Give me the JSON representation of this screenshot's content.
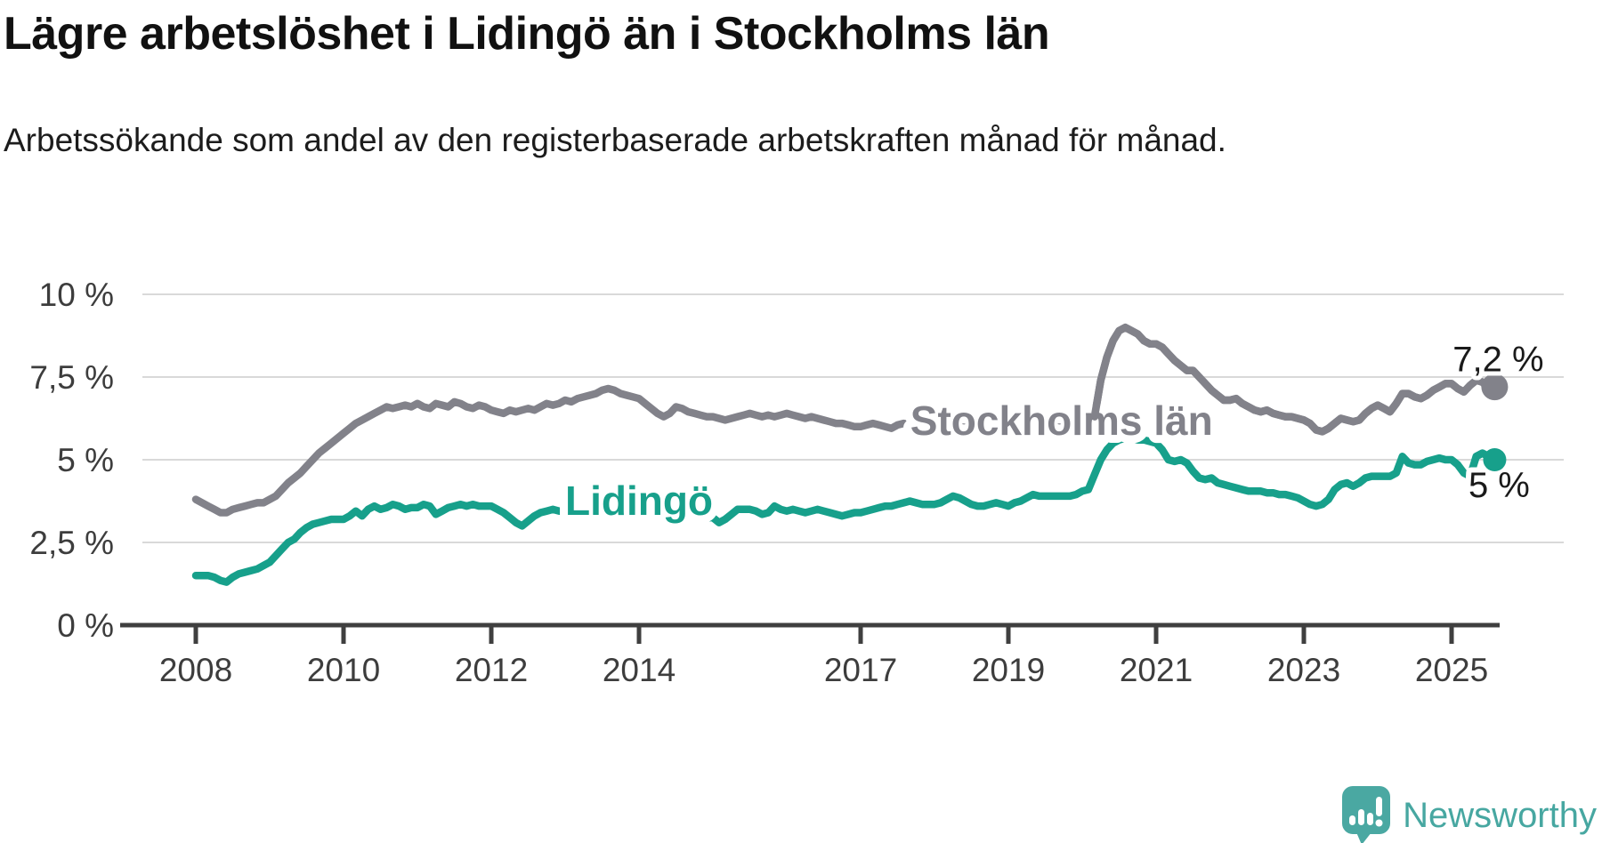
{
  "title": "Lägre arbetslöshet i Lidingö än i Stockholms län",
  "subtitle": "Arbetssökande som andel av den registerbaserade arbetskraften månad för månad.",
  "branding": {
    "name": "Newsworthy",
    "color": "#47a7a1"
  },
  "chart_data": {
    "type": "line",
    "unit": "%",
    "x_monthly_from": "2008-01",
    "x_monthly_to": "2025-08",
    "ylim": [
      0,
      10
    ],
    "ytick_values": [
      0,
      2.5,
      5,
      7.5,
      10
    ],
    "ytick_labels": [
      "0 %",
      "2,5 %",
      "5 %",
      "7,5 %",
      "10 %"
    ],
    "xticks": [
      2008,
      2010,
      2012,
      2014,
      2017,
      2019,
      2021,
      2023,
      2025
    ],
    "grid": true,
    "grid_color": "#d9d9d9",
    "axis_color": "#3f3f3f",
    "tick_label_color": "#3d3d3d",
    "value_label_color": "#1a1a1a",
    "series": [
      {
        "name": "Stockholms län",
        "color": "#82828a",
        "end_label": "7,2 %",
        "end_value": 7.2,
        "values": [
          3.8,
          3.7,
          3.6,
          3.5,
          3.4,
          3.4,
          3.5,
          3.55,
          3.6,
          3.65,
          3.7,
          3.7,
          3.8,
          3.9,
          4.1,
          4.3,
          4.45,
          4.6,
          4.8,
          5.0,
          5.2,
          5.35,
          5.5,
          5.65,
          5.8,
          5.95,
          6.1,
          6.2,
          6.3,
          6.4,
          6.5,
          6.6,
          6.55,
          6.6,
          6.65,
          6.6,
          6.7,
          6.6,
          6.55,
          6.7,
          6.65,
          6.6,
          6.75,
          6.7,
          6.6,
          6.55,
          6.65,
          6.6,
          6.5,
          6.45,
          6.4,
          6.5,
          6.45,
          6.5,
          6.55,
          6.5,
          6.6,
          6.7,
          6.65,
          6.7,
          6.8,
          6.75,
          6.85,
          6.9,
          6.95,
          7.0,
          7.1,
          7.15,
          7.1,
          7.0,
          6.95,
          6.9,
          6.85,
          6.7,
          6.55,
          6.4,
          6.3,
          6.4,
          6.6,
          6.55,
          6.45,
          6.4,
          6.35,
          6.3,
          6.3,
          6.25,
          6.2,
          6.25,
          6.3,
          6.35,
          6.4,
          6.35,
          6.3,
          6.35,
          6.3,
          6.35,
          6.4,
          6.35,
          6.3,
          6.25,
          6.3,
          6.25,
          6.2,
          6.15,
          6.1,
          6.1,
          6.05,
          6.0,
          6.0,
          6.05,
          6.1,
          6.05,
          6.0,
          5.95,
          6.05,
          6.1,
          6.05,
          6.0,
          6.05,
          6.1,
          6.05,
          6.0,
          5.95,
          5.9,
          5.95,
          6.0,
          6.05,
          6.0,
          5.95,
          6.0,
          6.05,
          6.0,
          6.0,
          6.05,
          6.1,
          6.05,
          6.1,
          6.1,
          6.15,
          6.1,
          6.1,
          6.05,
          6.1,
          6.1,
          6.1,
          6.15,
          6.3,
          7.4,
          8.1,
          8.6,
          8.9,
          9.0,
          8.9,
          8.8,
          8.6,
          8.5,
          8.5,
          8.4,
          8.2,
          8.0,
          7.85,
          7.7,
          7.7,
          7.5,
          7.3,
          7.1,
          6.95,
          6.8,
          6.8,
          6.85,
          6.7,
          6.6,
          6.5,
          6.45,
          6.5,
          6.4,
          6.35,
          6.3,
          6.3,
          6.25,
          6.2,
          6.1,
          5.9,
          5.85,
          5.95,
          6.1,
          6.25,
          6.2,
          6.15,
          6.2,
          6.4,
          6.55,
          6.65,
          6.55,
          6.45,
          6.7,
          7.0,
          7.0,
          6.9,
          6.85,
          6.95,
          7.1,
          7.2,
          7.3,
          7.3,
          7.15,
          7.05,
          7.25,
          7.4,
          7.35,
          7.15,
          7.2
        ]
      },
      {
        "name": "Lidingö",
        "color": "#17a08b",
        "end_label": "5 %",
        "end_value": 5.0,
        "values": [
          1.5,
          1.5,
          1.5,
          1.45,
          1.35,
          1.3,
          1.45,
          1.55,
          1.6,
          1.65,
          1.7,
          1.8,
          1.9,
          2.1,
          2.3,
          2.5,
          2.6,
          2.8,
          2.95,
          3.05,
          3.1,
          3.15,
          3.2,
          3.2,
          3.2,
          3.3,
          3.45,
          3.3,
          3.5,
          3.6,
          3.5,
          3.55,
          3.65,
          3.6,
          3.5,
          3.55,
          3.55,
          3.65,
          3.6,
          3.35,
          3.45,
          3.55,
          3.6,
          3.65,
          3.6,
          3.65,
          3.6,
          3.6,
          3.6,
          3.5,
          3.4,
          3.25,
          3.1,
          3.0,
          3.15,
          3.3,
          3.4,
          3.45,
          3.5,
          3.45,
          3.45,
          3.5,
          3.45,
          3.4,
          3.45,
          3.4,
          3.45,
          3.4,
          3.45,
          3.4,
          3.45,
          3.4,
          3.4,
          3.45,
          3.4,
          3.35,
          3.4,
          3.35,
          3.4,
          3.35,
          3.3,
          3.35,
          3.3,
          3.25,
          3.25,
          3.1,
          3.2,
          3.35,
          3.5,
          3.5,
          3.5,
          3.45,
          3.35,
          3.4,
          3.6,
          3.5,
          3.45,
          3.5,
          3.45,
          3.4,
          3.45,
          3.5,
          3.45,
          3.4,
          3.35,
          3.3,
          3.35,
          3.4,
          3.4,
          3.45,
          3.5,
          3.55,
          3.6,
          3.6,
          3.65,
          3.7,
          3.75,
          3.7,
          3.65,
          3.65,
          3.65,
          3.7,
          3.8,
          3.9,
          3.85,
          3.75,
          3.65,
          3.6,
          3.6,
          3.65,
          3.7,
          3.65,
          3.6,
          3.7,
          3.75,
          3.85,
          3.95,
          3.9,
          3.9,
          3.9,
          3.9,
          3.9,
          3.9,
          3.95,
          4.05,
          4.1,
          4.55,
          5.0,
          5.3,
          5.5,
          5.6,
          5.65,
          5.65,
          5.6,
          5.6,
          5.55,
          5.5,
          5.3,
          5.0,
          4.95,
          5.0,
          4.9,
          4.65,
          4.45,
          4.4,
          4.45,
          4.3,
          4.25,
          4.2,
          4.15,
          4.1,
          4.05,
          4.05,
          4.05,
          4.0,
          4.0,
          3.95,
          3.95,
          3.9,
          3.85,
          3.75,
          3.65,
          3.6,
          3.65,
          3.8,
          4.1,
          4.25,
          4.3,
          4.2,
          4.3,
          4.45,
          4.5,
          4.5,
          4.5,
          4.5,
          4.6,
          5.1,
          4.9,
          4.85,
          4.85,
          4.95,
          5.0,
          5.05,
          5.0,
          5.0,
          4.85,
          4.6,
          4.5,
          5.1,
          5.2,
          5.1,
          5.0
        ]
      }
    ]
  }
}
